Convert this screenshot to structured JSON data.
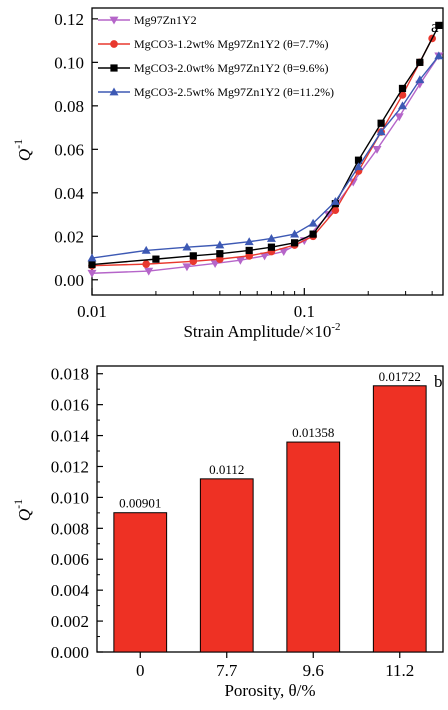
{
  "chart_data": [
    {
      "type": "line",
      "panel_label": "a",
      "xlabel": "Strain Amplitude/×10",
      "xlabel_sup": "-2",
      "ylabel": "Q",
      "ylabel_sup": "-1",
      "xscale": "log",
      "xlim": [
        0.01,
        0.45
      ],
      "ylim": [
        -0.007,
        0.125
      ],
      "xticks": [
        0.01,
        0.1
      ],
      "xtick_labels": [
        "0.01",
        "0.1"
      ],
      "yticks": [
        0.0,
        0.02,
        0.04,
        0.06,
        0.08,
        0.1,
        0.12
      ],
      "ytick_labels": [
        "0.00",
        "0.02",
        "0.04",
        "0.06",
        "0.08",
        "0.10",
        "0.12"
      ],
      "grid": false,
      "legend_position": "top-left",
      "series": [
        {
          "name": "Mg97Zn1Y2",
          "color": "#b565c9",
          "marker": "triangle-down",
          "x": [
            0.01,
            0.0185,
            0.028,
            0.038,
            0.05,
            0.065,
            0.08,
            0.1,
            0.13,
            0.17,
            0.22,
            0.28,
            0.35,
            0.43
          ],
          "y": [
            0.003,
            0.004,
            0.006,
            0.0075,
            0.009,
            0.011,
            0.013,
            0.018,
            0.03,
            0.045,
            0.06,
            0.075,
            0.09,
            0.103
          ]
        },
        {
          "name": "MgCO3-1.2wt% Mg97Zn1Y2 (θ=7.7%)",
          "color": "#e8382e",
          "marker": "circle",
          "x": [
            0.01,
            0.018,
            0.03,
            0.04,
            0.055,
            0.07,
            0.09,
            0.11,
            0.14,
            0.18,
            0.23,
            0.29,
            0.35,
            0.4
          ],
          "y": [
            0.0065,
            0.0072,
            0.0085,
            0.0095,
            0.011,
            0.013,
            0.016,
            0.02,
            0.032,
            0.05,
            0.068,
            0.085,
            0.1,
            0.111
          ]
        },
        {
          "name": "MgCO3-2.0wt% Mg97Zn1Y2 (θ=9.6%)",
          "color": "#000000",
          "marker": "square",
          "x": [
            0.01,
            0.02,
            0.03,
            0.04,
            0.055,
            0.07,
            0.09,
            0.11,
            0.14,
            0.18,
            0.23,
            0.29,
            0.35,
            0.43
          ],
          "y": [
            0.007,
            0.0095,
            0.011,
            0.012,
            0.0135,
            0.015,
            0.017,
            0.021,
            0.035,
            0.055,
            0.072,
            0.088,
            0.1,
            0.117
          ]
        },
        {
          "name": "MgCO3-2.5wt% Mg97Zn1Y2 (θ=11.2%)",
          "color": "#3d59b4",
          "marker": "triangle-up",
          "x": [
            0.01,
            0.018,
            0.028,
            0.04,
            0.055,
            0.07,
            0.09,
            0.11,
            0.14,
            0.18,
            0.23,
            0.29,
            0.35,
            0.43
          ],
          "y": [
            0.01,
            0.0135,
            0.015,
            0.016,
            0.0175,
            0.019,
            0.021,
            0.026,
            0.036,
            0.052,
            0.068,
            0.08,
            0.092,
            0.103
          ]
        }
      ]
    },
    {
      "type": "bar",
      "panel_label": "b",
      "xlabel": "Porosity, θ/%",
      "ylabel": "Q",
      "ylabel_sup": "-1",
      "categories": [
        "0",
        "7.7",
        "9.6",
        "11.2"
      ],
      "values": [
        0.00901,
        0.0112,
        0.01358,
        0.01722
      ],
      "value_labels": [
        "0.00901",
        "0.0112",
        "0.01358",
        "0.01722"
      ],
      "ylim": [
        0,
        0.0185
      ],
      "yticks": [
        0,
        0.002,
        0.004,
        0.006,
        0.008,
        0.01,
        0.012,
        0.014,
        0.016,
        0.018
      ],
      "ytick_labels": [
        "0.000",
        "0.002",
        "0.004",
        "0.006",
        "0.008",
        "0.010",
        "0.012",
        "0.014",
        "0.016",
        "0.018"
      ],
      "bar_color": "#ee3124",
      "grid": false
    }
  ]
}
